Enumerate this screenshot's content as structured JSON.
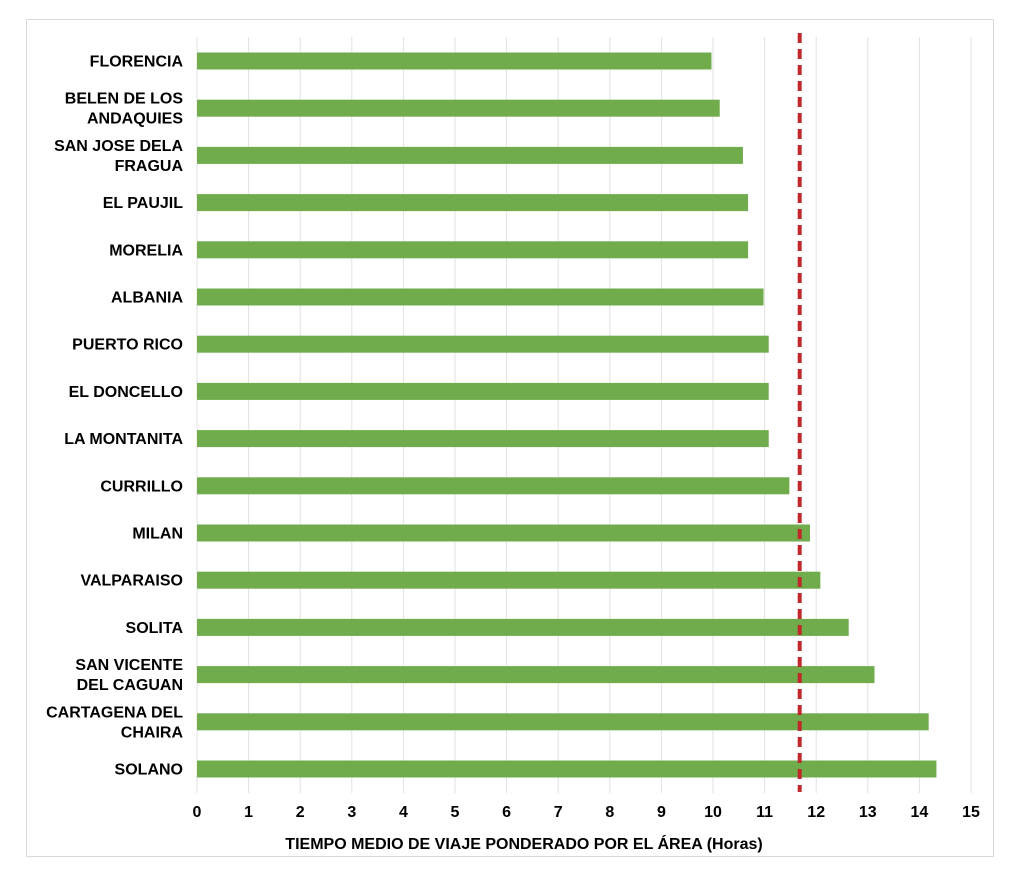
{
  "chart_data": {
    "type": "bar",
    "orientation": "horizontal",
    "categories": [
      [
        "FLORENCIA"
      ],
      [
        "BELEN DE LOS",
        "ANDAQUIES"
      ],
      [
        "SAN JOSE DELA",
        "FRAGUA"
      ],
      [
        "EL PAUJIL"
      ],
      [
        "MORELIA"
      ],
      [
        "ALBANIA"
      ],
      [
        "PUERTO RICO"
      ],
      [
        "EL DONCELLO"
      ],
      [
        "LA MONTANITA"
      ],
      [
        "CURRILLO"
      ],
      [
        "MILAN"
      ],
      [
        "VALPARAISO"
      ],
      [
        "SOLITA"
      ],
      [
        "SAN VICENTE",
        "DEL CAGUAN"
      ],
      [
        "CARTAGENA DEL",
        "CHAIRA"
      ],
      [
        "SOLANO"
      ]
    ],
    "values": [
      9.97,
      10.13,
      10.58,
      10.68,
      10.68,
      10.98,
      11.08,
      11.08,
      11.08,
      11.48,
      11.88,
      12.08,
      12.63,
      13.13,
      14.18,
      14.33
    ],
    "reference_line": {
      "value": 11.68,
      "style": "dashed",
      "color": "#c0282d"
    },
    "xlabel": "TIEMPO MEDIO DE VIAJE  PONDERADO POR  EL ÁREA (Horas)",
    "xlim": [
      0,
      15
    ],
    "xticks": [
      "0",
      "1",
      "2",
      "3",
      "4",
      "5",
      "6",
      "7",
      "8",
      "9",
      "10",
      "11",
      "12",
      "13",
      "14",
      "15"
    ],
    "grid": "vertical",
    "bar_color": "#70ab4c",
    "grid_color": "#e2e2e2"
  }
}
